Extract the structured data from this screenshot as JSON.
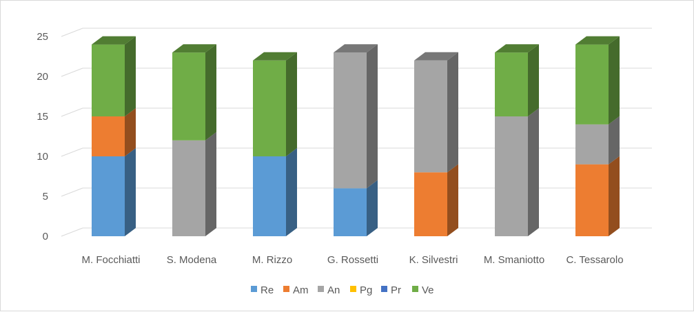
{
  "chart_data": {
    "type": "bar",
    "stacked": true,
    "style": "3d-column",
    "categories": [
      "M. Focchiatti",
      "S. Modena",
      "M. Rizzo",
      "G. Rossetti",
      "K. Silvestri",
      "M. Smaniotto",
      "C. Tessarolo"
    ],
    "series": [
      {
        "name": "Re",
        "color": "#5b9bd5",
        "values": [
          10,
          0,
          10,
          6,
          0,
          0,
          0
        ]
      },
      {
        "name": "Am",
        "color": "#ed7d31",
        "values": [
          5,
          0,
          0,
          0,
          8,
          0,
          9
        ]
      },
      {
        "name": "An",
        "color": "#a5a5a5",
        "values": [
          0,
          12,
          0,
          17,
          14,
          15,
          5
        ]
      },
      {
        "name": "Pg",
        "color": "#ffc000",
        "values": [
          0,
          0,
          0,
          0,
          0,
          0,
          0
        ]
      },
      {
        "name": "Pr",
        "color": "#4472c4",
        "values": [
          0,
          0,
          0,
          0,
          0,
          0,
          0
        ]
      },
      {
        "name": "Ve",
        "color": "#70ad47",
        "values": [
          9,
          11,
          12,
          0,
          0,
          8,
          10
        ]
      }
    ],
    "yticks": [
      0,
      5,
      10,
      15,
      20,
      25
    ],
    "ylim": [
      0,
      25
    ],
    "title": "",
    "xlabel": "",
    "ylabel": "",
    "grid": true,
    "legend_position": "bottom"
  }
}
